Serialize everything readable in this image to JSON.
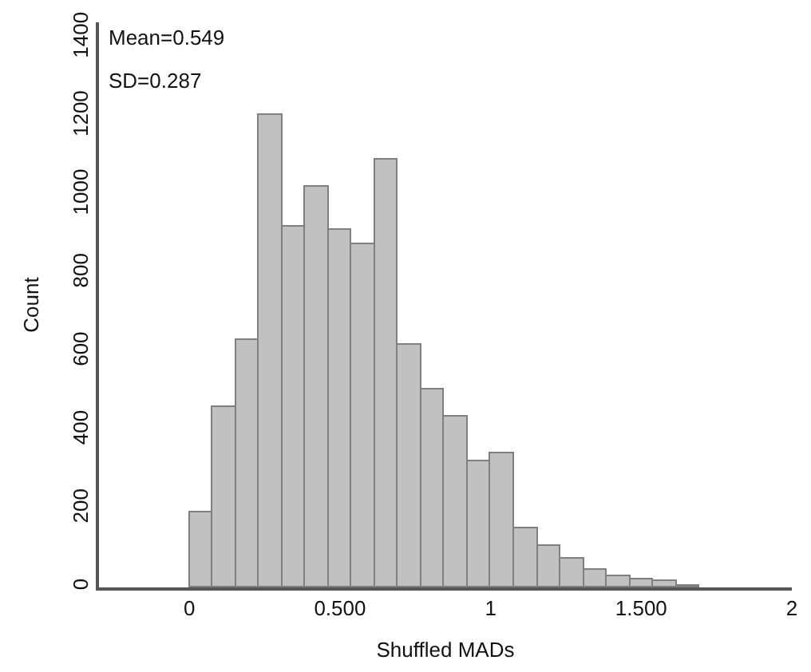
{
  "chart_data": {
    "type": "histogram",
    "xlabel": "Shuffled MADs",
    "ylabel": "Count",
    "annotations": [
      "Mean=0.549",
      "SD=0.287"
    ],
    "bins": [
      0,
      0.077,
      0.154,
      0.231,
      0.308,
      0.385,
      0.462,
      0.539,
      0.616,
      0.693,
      0.77,
      0.847,
      0.924,
      1.001,
      1.078,
      1.155,
      1.232,
      1.309,
      1.386,
      1.463,
      1.54,
      1.617,
      1.694
    ],
    "values": [
      190,
      460,
      630,
      1205,
      920,
      1020,
      910,
      875,
      1090,
      620,
      505,
      435,
      320,
      340,
      150,
      105,
      75,
      45,
      30,
      20,
      15,
      5
    ],
    "color": "#c0c0c0",
    "xlim": [
      -0.3,
      2
    ],
    "xticks": [
      0,
      {
        "value": 0.5,
        "label": "0.500"
      },
      1,
      {
        "value": 1.5,
        "label": "1.500"
      },
      2
    ],
    "ylim": [
      0,
      1440
    ],
    "yticks": [
      0,
      200,
      400,
      600,
      800,
      1000,
      1200,
      1400
    ]
  }
}
